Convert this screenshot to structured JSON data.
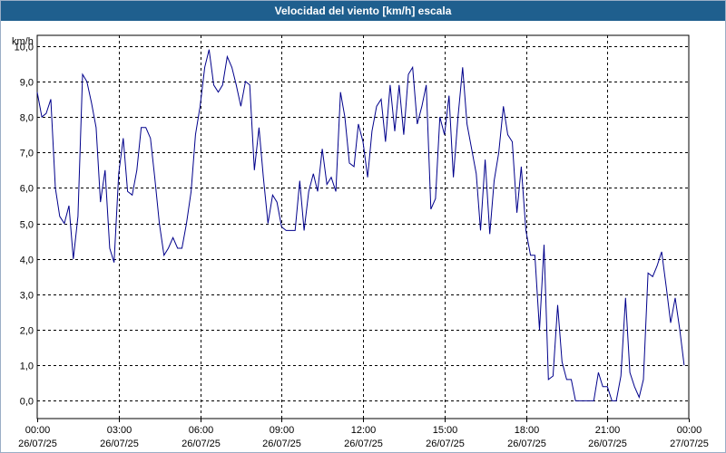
{
  "window": {
    "title": "Velocidad del viento [km/h] escala"
  },
  "chart_data": {
    "type": "line",
    "title": "Velocidad del viento [km/h] escala",
    "ylabel": "km/h",
    "ylim": [
      -0.5,
      10.3
    ],
    "grid": true,
    "y_ticks": [
      "0,0",
      "1,0",
      "2,0",
      "3,0",
      "4,0",
      "5,0",
      "6,0",
      "7,0",
      "8,0",
      "9,0",
      "10,0"
    ],
    "y_tick_values": [
      0,
      1,
      2,
      3,
      4,
      5,
      6,
      7,
      8,
      9,
      10
    ],
    "x_ticks": [
      {
        "time": "00:00",
        "date": "26/07/25",
        "hour": 0
      },
      {
        "time": "03:00",
        "date": "26/07/25",
        "hour": 3
      },
      {
        "time": "06:00",
        "date": "26/07/25",
        "hour": 6
      },
      {
        "time": "09:00",
        "date": "26/07/25",
        "hour": 9
      },
      {
        "time": "12:00",
        "date": "26/07/25",
        "hour": 12
      },
      {
        "time": "15:00",
        "date": "26/07/25",
        "hour": 15
      },
      {
        "time": "18:00",
        "date": "26/07/25",
        "hour": 18
      },
      {
        "time": "21:00",
        "date": "26/07/25",
        "hour": 21
      },
      {
        "time": "00:00",
        "date": "27/07/25",
        "hour": 24
      }
    ],
    "series": [
      {
        "color": "#00008b",
        "points": [
          [
            0.0,
            8.7
          ],
          [
            0.17,
            8.0
          ],
          [
            0.33,
            8.1
          ],
          [
            0.5,
            8.5
          ],
          [
            0.67,
            6.0
          ],
          [
            0.83,
            5.2
          ],
          [
            1.0,
            5.0
          ],
          [
            1.17,
            5.5
          ],
          [
            1.33,
            4.0
          ],
          [
            1.5,
            5.2
          ],
          [
            1.67,
            9.2
          ],
          [
            1.83,
            9.0
          ],
          [
            2.0,
            8.4
          ],
          [
            2.17,
            7.7
          ],
          [
            2.33,
            5.6
          ],
          [
            2.5,
            6.5
          ],
          [
            2.67,
            4.3
          ],
          [
            2.83,
            3.9
          ],
          [
            3.0,
            6.4
          ],
          [
            3.17,
            7.4
          ],
          [
            3.33,
            5.9
          ],
          [
            3.5,
            5.8
          ],
          [
            3.67,
            6.5
          ],
          [
            3.83,
            7.7
          ],
          [
            4.0,
            7.7
          ],
          [
            4.17,
            7.4
          ],
          [
            4.33,
            6.3
          ],
          [
            4.5,
            5.0
          ],
          [
            4.67,
            4.1
          ],
          [
            4.83,
            4.3
          ],
          [
            5.0,
            4.6
          ],
          [
            5.17,
            4.3
          ],
          [
            5.33,
            4.3
          ],
          [
            5.5,
            5.0
          ],
          [
            5.67,
            5.9
          ],
          [
            5.83,
            7.5
          ],
          [
            6.0,
            8.3
          ],
          [
            6.17,
            9.4
          ],
          [
            6.33,
            9.9
          ],
          [
            6.5,
            8.9
          ],
          [
            6.67,
            8.7
          ],
          [
            6.83,
            8.9
          ],
          [
            7.0,
            9.7
          ],
          [
            7.17,
            9.4
          ],
          [
            7.33,
            8.9
          ],
          [
            7.5,
            8.3
          ],
          [
            7.67,
            9.0
          ],
          [
            7.83,
            8.9
          ],
          [
            8.0,
            6.5
          ],
          [
            8.17,
            7.7
          ],
          [
            8.33,
            6.3
          ],
          [
            8.5,
            5.0
          ],
          [
            8.67,
            5.8
          ],
          [
            8.83,
            5.6
          ],
          [
            9.0,
            4.9
          ],
          [
            9.17,
            4.8
          ],
          [
            9.33,
            4.8
          ],
          [
            9.5,
            4.8
          ],
          [
            9.67,
            6.2
          ],
          [
            9.83,
            4.8
          ],
          [
            10.0,
            5.9
          ],
          [
            10.17,
            6.4
          ],
          [
            10.33,
            5.9
          ],
          [
            10.5,
            7.1
          ],
          [
            10.67,
            6.1
          ],
          [
            10.83,
            6.3
          ],
          [
            11.0,
            5.9
          ],
          [
            11.17,
            8.7
          ],
          [
            11.33,
            8.0
          ],
          [
            11.5,
            6.7
          ],
          [
            11.67,
            6.6
          ],
          [
            11.83,
            7.8
          ],
          [
            12.0,
            7.3
          ],
          [
            12.17,
            6.3
          ],
          [
            12.33,
            7.6
          ],
          [
            12.5,
            8.3
          ],
          [
            12.67,
            8.5
          ],
          [
            12.83,
            7.3
          ],
          [
            13.0,
            8.9
          ],
          [
            13.17,
            7.6
          ],
          [
            13.33,
            8.9
          ],
          [
            13.5,
            7.5
          ],
          [
            13.67,
            9.2
          ],
          [
            13.83,
            9.4
          ],
          [
            14.0,
            7.8
          ],
          [
            14.17,
            8.3
          ],
          [
            14.33,
            8.9
          ],
          [
            14.5,
            5.4
          ],
          [
            14.67,
            5.7
          ],
          [
            14.83,
            8.0
          ],
          [
            15.0,
            7.5
          ],
          [
            15.17,
            8.6
          ],
          [
            15.33,
            6.3
          ],
          [
            15.5,
            8.0
          ],
          [
            15.67,
            9.4
          ],
          [
            15.83,
            7.8
          ],
          [
            16.0,
            7.1
          ],
          [
            16.17,
            6.4
          ],
          [
            16.33,
            4.8
          ],
          [
            16.5,
            6.8
          ],
          [
            16.67,
            4.7
          ],
          [
            16.83,
            6.2
          ],
          [
            17.0,
            7.0
          ],
          [
            17.17,
            8.3
          ],
          [
            17.33,
            7.5
          ],
          [
            17.5,
            7.3
          ],
          [
            17.67,
            5.3
          ],
          [
            17.83,
            6.6
          ],
          [
            18.0,
            4.8
          ],
          [
            18.17,
            4.1
          ],
          [
            18.33,
            4.1
          ],
          [
            18.5,
            2.0
          ],
          [
            18.67,
            4.4
          ],
          [
            18.83,
            0.6
          ],
          [
            19.0,
            0.7
          ],
          [
            19.17,
            2.7
          ],
          [
            19.33,
            1.1
          ],
          [
            19.5,
            0.6
          ],
          [
            19.67,
            0.6
          ],
          [
            19.83,
            0.0
          ],
          [
            20.0,
            0.0
          ],
          [
            20.17,
            0.0
          ],
          [
            20.33,
            0.0
          ],
          [
            20.5,
            0.0
          ],
          [
            20.67,
            0.8
          ],
          [
            20.83,
            0.4
          ],
          [
            21.0,
            0.4
          ],
          [
            21.17,
            0.0
          ],
          [
            21.33,
            0.0
          ],
          [
            21.5,
            0.7
          ],
          [
            21.67,
            2.9
          ],
          [
            21.83,
            0.8
          ],
          [
            22.0,
            0.4
          ],
          [
            22.17,
            0.1
          ],
          [
            22.33,
            0.6
          ],
          [
            22.5,
            3.6
          ],
          [
            22.67,
            3.5
          ],
          [
            22.83,
            3.8
          ],
          [
            23.0,
            4.2
          ],
          [
            23.17,
            3.2
          ],
          [
            23.33,
            2.2
          ],
          [
            23.5,
            2.9
          ],
          [
            23.67,
            2.0
          ],
          [
            23.83,
            1.0
          ]
        ]
      }
    ]
  }
}
